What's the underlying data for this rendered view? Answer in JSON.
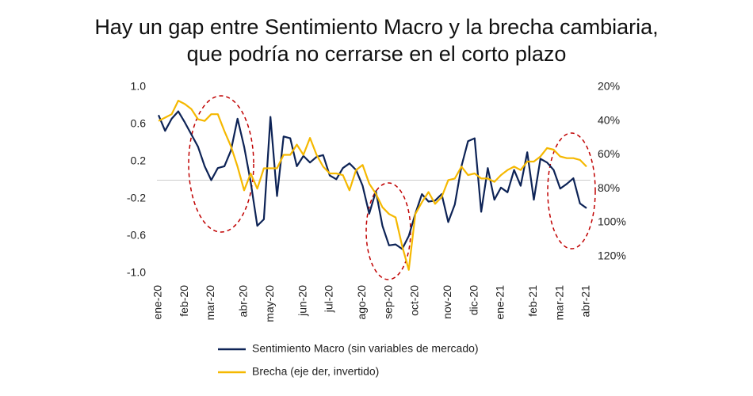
{
  "chart_data": {
    "type": "line",
    "title": [
      "Hay un gap entre Sentimiento Macro y la brecha cambiaria,",
      "que podría no cerrarse en el corto plazo"
    ],
    "categories": [
      "ene-20",
      null,
      null,
      null,
      "feb-20",
      null,
      null,
      null,
      "mar-20",
      null,
      null,
      null,
      null,
      "abr-20",
      null,
      null,
      null,
      "may-20",
      null,
      null,
      null,
      null,
      "jun-20",
      null,
      null,
      null,
      "jul-20",
      null,
      null,
      null,
      null,
      "ago-20",
      null,
      null,
      null,
      "sep-20",
      null,
      null,
      null,
      "oct-20",
      null,
      null,
      null,
      null,
      "nov-20",
      null,
      null,
      null,
      "dic-20",
      null,
      null,
      null,
      "ene-21",
      null,
      null,
      null,
      null,
      "feb-21",
      null,
      null,
      null,
      "mar-21",
      null,
      null,
      null,
      "abr-21"
    ],
    "series": [
      {
        "name": "Sentimiento Macro (sin variables de mercado)",
        "color": "#0d2356",
        "axis": "y",
        "values": [
          0.7,
          0.53,
          0.66,
          0.74,
          0.62,
          0.49,
          0.36,
          0.15,
          0.0,
          0.13,
          0.15,
          0.32,
          0.66,
          0.36,
          -0.02,
          -0.49,
          -0.42,
          0.68,
          -0.17,
          0.47,
          0.45,
          0.15,
          0.26,
          0.19,
          0.25,
          0.27,
          0.05,
          0.01,
          0.13,
          0.18,
          0.11,
          -0.06,
          -0.36,
          -0.12,
          -0.49,
          -0.7,
          -0.69,
          -0.74,
          -0.6,
          -0.36,
          -0.15,
          -0.23,
          -0.22,
          -0.15,
          -0.45,
          -0.26,
          0.15,
          0.42,
          0.45,
          -0.34,
          0.13,
          -0.21,
          -0.08,
          -0.13,
          0.11,
          -0.06,
          0.3,
          -0.21,
          0.23,
          0.19,
          0.11,
          -0.09,
          -0.04,
          0.02,
          -0.25,
          -0.3
        ]
      },
      {
        "name": "Brecha (eje der, invertido)",
        "color": "#f5b800",
        "axis": "y2",
        "values": [
          40,
          38,
          36,
          28,
          30,
          33,
          39,
          40,
          36,
          36,
          46,
          55,
          67,
          81,
          71,
          80,
          68,
          68,
          68,
          60,
          60,
          54,
          60,
          50,
          60,
          67,
          71,
          71,
          72,
          81,
          69,
          66,
          77,
          83,
          91,
          95,
          97,
          114,
          128,
          95,
          88,
          82,
          89,
          85,
          75,
          74,
          67,
          72,
          71,
          74,
          74,
          76,
          72,
          69,
          67,
          69,
          64,
          64,
          61,
          56,
          57,
          61,
          62,
          62,
          63,
          67
        ]
      }
    ],
    "ylim": [
      -1,
      1
    ],
    "yticks": [
      {
        "value": 1,
        "label": "1.0"
      },
      0.6,
      0.2,
      -0.2,
      -0.6,
      {
        "value": -1,
        "label": "-1.0"
      }
    ],
    "y2lim": [
      20,
      130
    ],
    "y2_inverted": true,
    "y2ticks": [
      {
        "value": 20,
        "label": "20%"
      },
      {
        "value": 40,
        "label": "40%"
      },
      {
        "value": 60,
        "label": "60%"
      },
      {
        "value": 80,
        "label": "80%"
      },
      {
        "value": 100,
        "label": "100%"
      },
      {
        "value": 120,
        "label": "120%"
      }
    ],
    "grid": false
  }
}
